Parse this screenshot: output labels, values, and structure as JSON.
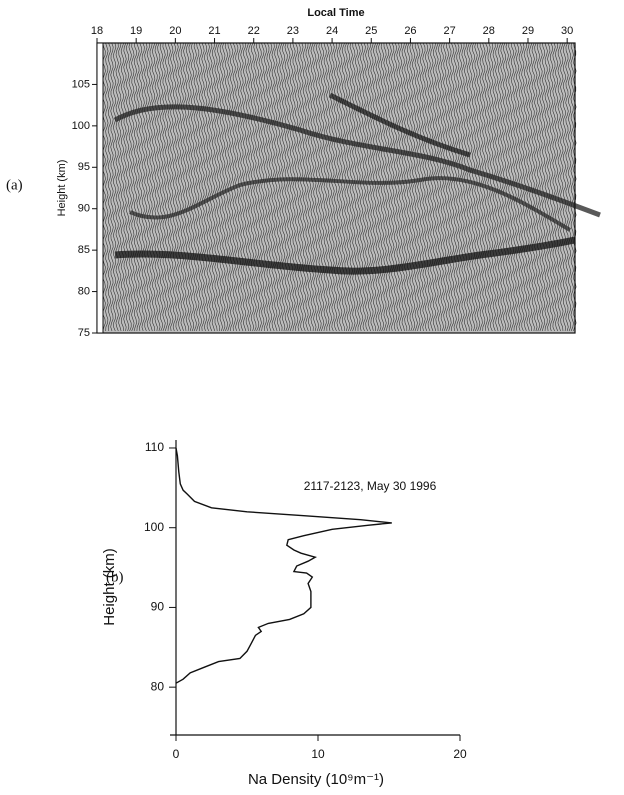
{
  "chart_data": [
    {
      "type": "wiggle",
      "label": "(a)",
      "title": "Local Time",
      "y_label": "Height (km)",
      "xlim": [
        18,
        30.2
      ],
      "xticks": [
        18,
        19,
        20,
        21,
        22,
        23,
        24,
        25,
        26,
        27,
        28,
        29,
        30
      ],
      "ylim": [
        75,
        110
      ],
      "yticks": [
        75,
        80,
        85,
        90,
        95,
        100,
        105
      ]
    },
    {
      "type": "line",
      "label": "(b)",
      "annotation": "2117-2123, May 30 1996",
      "x_label": "Na Density (10⁹m⁻¹)",
      "y_label": "Height (km)",
      "color": "#111111",
      "xlim": [
        0,
        20
      ],
      "xticks": [
        0,
        10,
        20
      ],
      "ylim": [
        74,
        111
      ],
      "yticks": [
        80,
        90,
        100,
        110
      ],
      "x": [
        0,
        0.5,
        1,
        2,
        3,
        4.5,
        5,
        5.3,
        5.6,
        6,
        5.8,
        6.5,
        8,
        9,
        9.5,
        9.5,
        9.5,
        9.3,
        9.6,
        9.2,
        8.3,
        8.5,
        9.3,
        9.8,
        8.8,
        8.3,
        7.8,
        7.9,
        9,
        11,
        13.5,
        15.2,
        13,
        9,
        5,
        2.5,
        1.3,
        0.8,
        0.5,
        0.3,
        0.2,
        0.1,
        0
      ],
      "values": [
        80.5,
        81,
        81.8,
        82.5,
        83.2,
        83.6,
        84.5,
        85.5,
        86.5,
        87,
        87.5,
        88,
        88.5,
        89.2,
        90,
        91,
        92,
        93,
        93.8,
        94.3,
        94.5,
        95.2,
        95.8,
        96.3,
        96.8,
        97.2,
        97.8,
        98.5,
        99,
        99.8,
        100.3,
        100.6,
        101,
        101.5,
        102,
        102.5,
        103.3,
        104.2,
        104.7,
        105.5,
        107,
        109,
        110
      ]
    }
  ]
}
